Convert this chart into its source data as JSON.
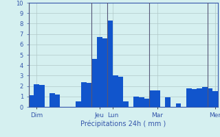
{
  "bar_values": [
    1.1,
    2.2,
    2.1,
    0,
    1.3,
    1.2,
    0,
    0,
    0,
    0.5,
    2.4,
    2.3,
    4.6,
    6.7,
    6.6,
    8.3,
    3.0,
    2.9,
    0.5,
    0,
    1.0,
    0.9,
    0.8,
    1.6,
    1.6,
    0,
    0.9,
    0,
    0.3,
    0,
    1.8,
    1.7,
    1.8,
    1.9,
    1.8,
    1.5
  ],
  "bar_color": "#1155cc",
  "bar_edge_color": "#0033aa",
  "background_color": "#d5f0f0",
  "grid_color": "#b0c8c8",
  "axis_color": "#3355aa",
  "tick_label_color": "#3355aa",
  "xlabel": "Précipitations 24h ( mm )",
  "xlabel_color": "#3355aa",
  "ylim": [
    0,
    10
  ],
  "yticks": [
    0,
    1,
    2,
    3,
    4,
    5,
    6,
    7,
    8,
    9,
    10
  ],
  "day_labels": [
    "Dim",
    "Jeu",
    "Lun",
    "Mar",
    "Mer"
  ],
  "day_tick_positions": [
    1,
    13,
    15.5,
    24,
    35
  ],
  "vline_positions": [
    -0.5,
    11.5,
    14.5,
    22.5,
    33.5
  ],
  "n_bars": 36
}
